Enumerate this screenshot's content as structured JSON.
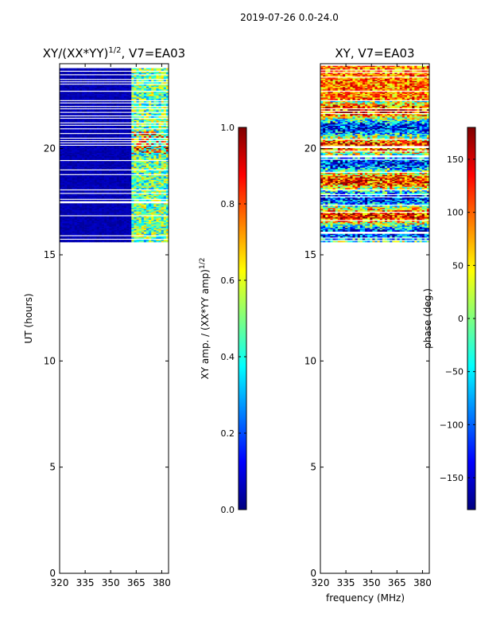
{
  "suptitle": "2019-07-26 0.0-24.0",
  "colormap_stops": [
    "#00007f",
    "#0000ff",
    "#007fff",
    "#00ffff",
    "#7fff7f",
    "#ffff00",
    "#ff7f00",
    "#ff0000",
    "#7f0000"
  ],
  "chart_data": [
    {
      "type": "heatmap",
      "title_main": "XY/(XX*YY)",
      "title_sup": "1/2",
      "title_rest": ", V7=EA03",
      "ylabel": "UT (hours)",
      "xlabel": "",
      "xlim": [
        320,
        384
      ],
      "ylim": [
        0,
        24
      ],
      "xticks": [
        320,
        335,
        350,
        365,
        380
      ],
      "yticks": [
        0,
        5,
        10,
        15,
        20
      ],
      "data_ut_range": [
        15.6,
        23.9
      ],
      "colorbar": {
        "label_main": "XY amp. / (XX*YY amp)",
        "label_sup": "1/2",
        "range": [
          0.0,
          1.0
        ],
        "ticks": [
          0.0,
          0.2,
          0.4,
          0.6,
          0.8,
          1.0
        ],
        "tick_labels": [
          "0.0",
          "0.2",
          "0.4",
          "0.6",
          "0.8",
          "1.0"
        ]
      }
    },
    {
      "type": "heatmap",
      "title_main": "XY, V7=EA03",
      "title_sup": "",
      "title_rest": "",
      "ylabel": "",
      "xlabel": "frequency (MHz)",
      "xlim": [
        320,
        384
      ],
      "ylim": [
        0,
        24
      ],
      "xticks": [
        320,
        335,
        350,
        365,
        380
      ],
      "yticks": [
        0,
        5,
        10,
        15,
        20
      ],
      "data_ut_range": [
        15.6,
        23.9
      ],
      "colorbar": {
        "label_main": "phase (deg.)",
        "label_sup": "",
        "range": [
          -180,
          180
        ],
        "ticks": [
          -150,
          -100,
          -50,
          0,
          50,
          100,
          150
        ],
        "tick_labels": [
          "−150",
          "−100",
          "−50",
          "0",
          "50",
          "100",
          "150"
        ]
      }
    }
  ]
}
